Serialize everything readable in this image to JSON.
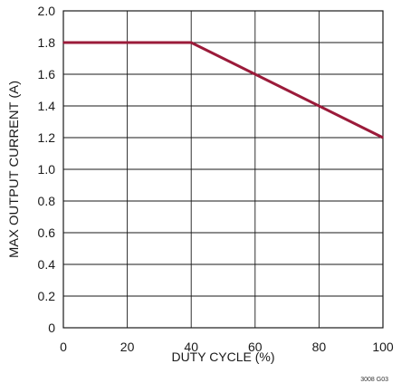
{
  "chart_data": {
    "type": "line",
    "title": "",
    "xlabel": "DUTY CYCLE (%)",
    "ylabel": "MAX OUTPUT CURRENT (A)",
    "xlim": [
      0,
      100
    ],
    "ylim": [
      0,
      2.0
    ],
    "x_ticks": [
      "0",
      "20",
      "40",
      "60",
      "80",
      "100"
    ],
    "y_ticks": [
      "0",
      "0.2",
      "0.4",
      "0.6",
      "0.8",
      "1.0",
      "1.2",
      "1.4",
      "1.6",
      "1.8",
      "2.0"
    ],
    "grid": true,
    "legend": "none",
    "series": [
      {
        "color": "#9b1b3a",
        "x": [
          0,
          40,
          100
        ],
        "y": [
          1.8,
          1.8,
          1.2
        ]
      }
    ],
    "figure_code": "3008 G03"
  }
}
